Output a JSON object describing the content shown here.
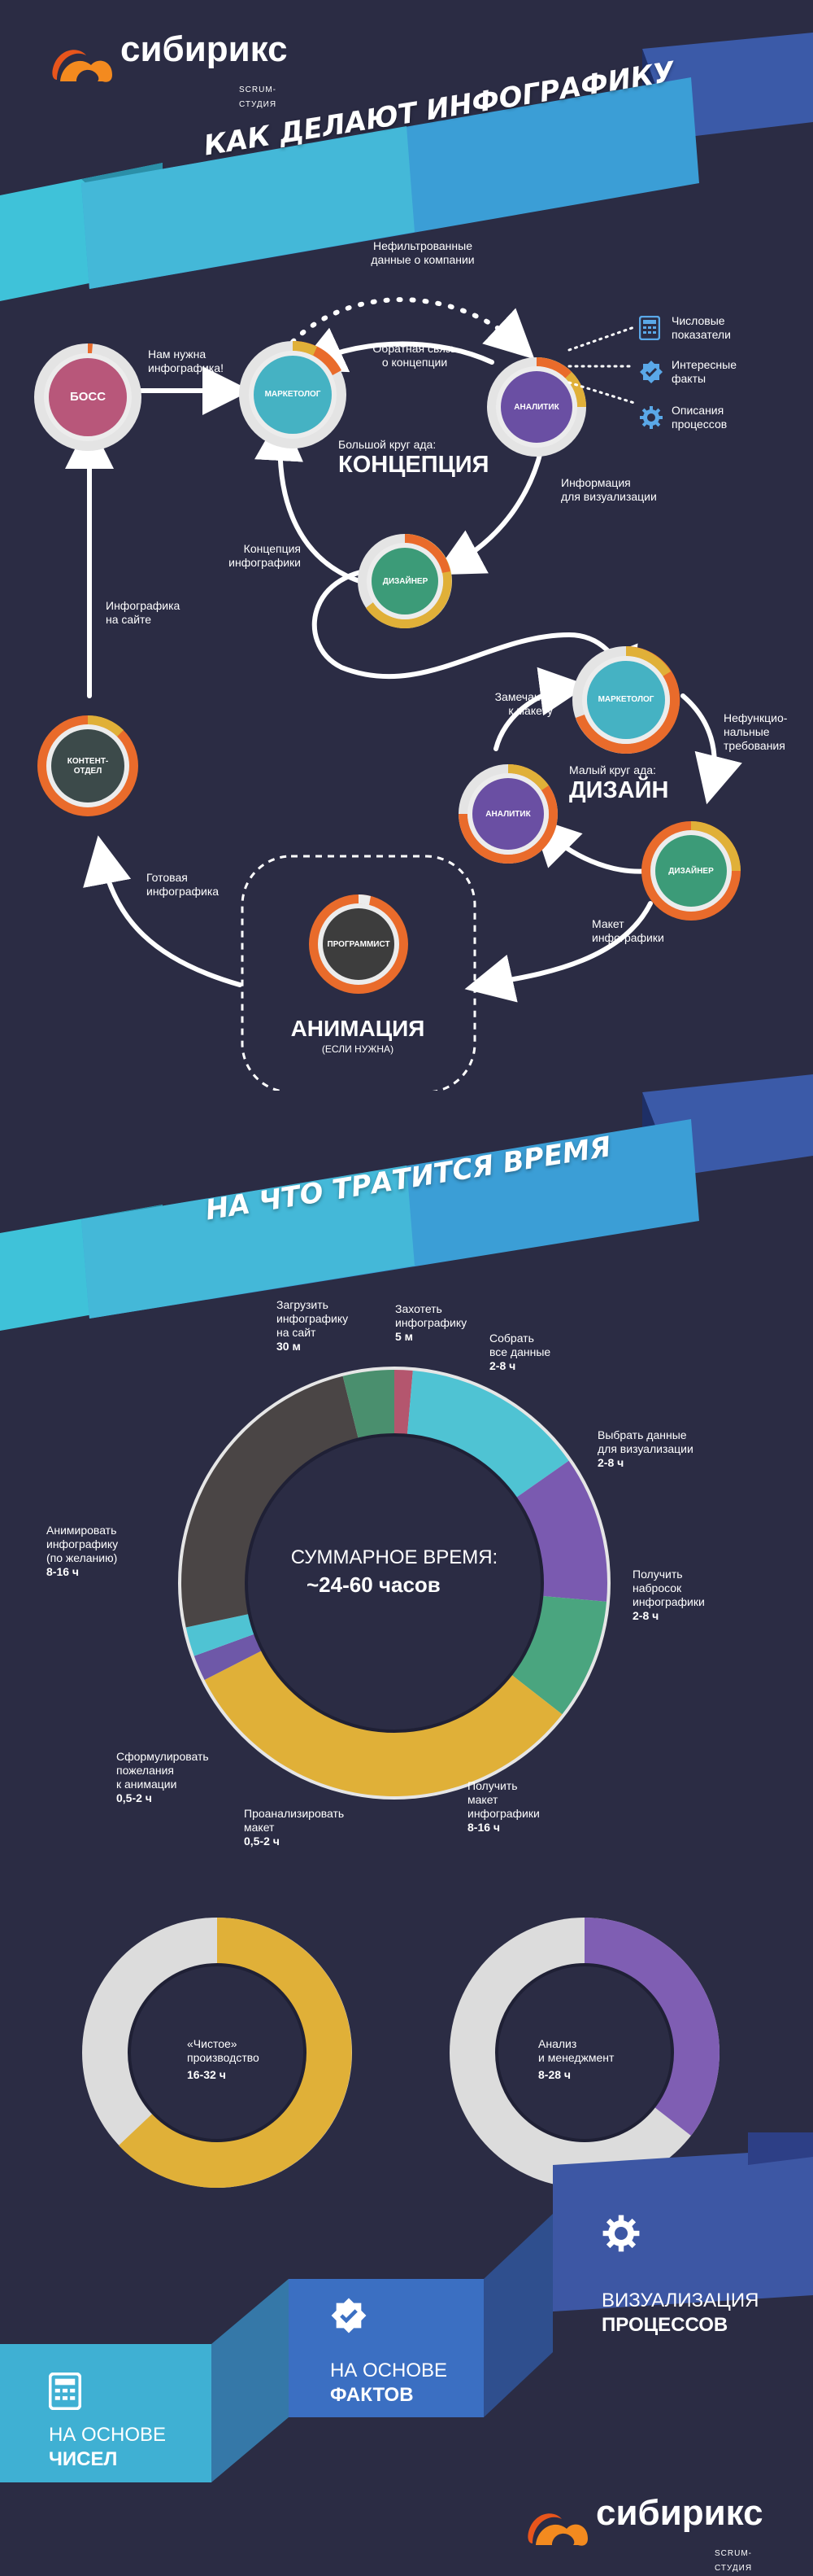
{
  "brand": {
    "name": "сибирикс",
    "tagline": "SCRUM-СТУДИЯ"
  },
  "section1": {
    "title": "КАК ДЕЛАЮТ ИНФОГРАФИКУ",
    "roles": {
      "boss": "БОСС",
      "marketer_top": "МАРКЕТОЛОГ",
      "analyst_top": "АНАЛИТИК",
      "designer_top": "ДИЗАЙНЕР",
      "content": "КОНТЕНТ-\nОТДЕЛ",
      "marketer_bottom": "МАРКЕТОЛОГ",
      "analyst_bottom": "АНАЛИТИК",
      "designer_bottom": "ДИЗАЙНЕР",
      "programmer": "ПРОГРАММИСТ"
    },
    "labels": {
      "need_infographic": "Нам нужна\nинфографика!",
      "unfiltered_data": "Нефильтрованные\nданные о компании",
      "feedback_concept": "Обратная связь\nо концепции",
      "big_circle_small": "Большой круг ада:",
      "big_circle_big": "КОНЦЕПЦИЯ",
      "info_for_viz": "Информация\nдля визуализации",
      "concept_infographic": "Концепция\nинфографики",
      "infographic_on_site": "Инфографика\nна сайте",
      "remarks": "Замечания\nк макету",
      "small_circle_small": "Малый круг ада:",
      "small_circle_big": "ДИЗАЙН",
      "nonfunctional": "Нефункцио-\nнальные\nтребования",
      "layout_infographic": "Макет\nинфографики",
      "ready_infographic": "Готовая\nинфографика",
      "animation_big": "АНИМАЦИЯ",
      "animation_small": "(ЕСЛИ НУЖНА)"
    },
    "legend": [
      {
        "icon": "calculator-icon",
        "label": "Числовые\nпоказатели"
      },
      {
        "icon": "check-badge-icon",
        "label": "Интересные\nфакты"
      },
      {
        "icon": "gear-icon",
        "label": "Описания\nпроцессов"
      }
    ]
  },
  "section2": {
    "title": "НА ЧТО ТРАТИТСЯ ВРЕМЯ",
    "total_label": "СУММАРНОЕ ВРЕМЯ:",
    "total_value": "~24-60 часов",
    "segments": [
      {
        "name": "Захотеть\nинфографику",
        "value": "5 м",
        "color": "#b4566e"
      },
      {
        "name": "Собрать\nвсе данные",
        "value": "2-8 ч",
        "color": "#4fc3d3"
      },
      {
        "name": "Выбрать данные\nдля визуализации",
        "value": "2-8 ч",
        "color": "#7a5ab0"
      },
      {
        "name": "Получить\nнаброс ок\nинфографики",
        "value": "2-8 ч",
        "color": "#4aa57f"
      },
      {
        "name": "Получить\nмакет\nинфографики",
        "value": "8-16 ч",
        "color": "#e0b038"
      },
      {
        "name": "Проанализировать\nмакет",
        "value": "0,5-2 ч",
        "color": "#6e58a8"
      },
      {
        "name": "Сформулировать\nпожелания\nк анимации",
        "value": "0,5-2 ч",
        "color": "#4fc3d3"
      },
      {
        "name": "Анимировать\nинфографику\n(по желанию)",
        "value": "8-16 ч",
        "color": "#4a4545"
      },
      {
        "name": "Загрузить\nинфографику\nна сайт",
        "value": "30 м",
        "color": "#4a8f6e"
      }
    ],
    "pure_label": "«Чистое»\nпроизводство",
    "pure_value": "16-32 ч",
    "analysis_label": "Анализ\nи менеджмент",
    "analysis_value": "8-28 ч"
  },
  "steps": [
    {
      "icon": "calculator-icon",
      "light": "НА ОСНОВЕ",
      "bold": "ЧИСЕЛ"
    },
    {
      "icon": "check-badge-icon",
      "light": "НА ОСНОВЕ",
      "bold": "ФАКТОВ"
    },
    {
      "icon": "gear-icon",
      "light": "ВИЗУАЛИЗАЦИЯ",
      "bold": "ПРОЦЕССОВ"
    }
  ]
}
